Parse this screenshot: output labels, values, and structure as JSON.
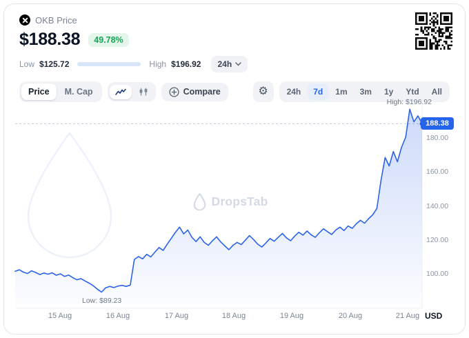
{
  "header": {
    "coin_label": "OKB Price",
    "price": "$188.38",
    "change_pct": "49.78%",
    "low_label": "Low",
    "low_value": "$125.72",
    "high_label": "High",
    "high_value": "$196.92",
    "range_selector": "24h",
    "range_fill_pct": 88
  },
  "toolbar": {
    "metric_tabs": [
      "Price",
      "M. Cap"
    ],
    "selected_metric": "Price",
    "compare_label": "Compare",
    "ranges": [
      "24h",
      "7d",
      "1m",
      "3m",
      "1y",
      "Ytd",
      "All"
    ],
    "selected_range": "7d"
  },
  "chart": {
    "watermark": "DropsTab",
    "high_annotation": "High: $196.92",
    "low_annotation": "Low: $89.23",
    "current_price_label": "188.38"
  },
  "chart_data": {
    "type": "line",
    "title": "OKB Price, 7 days",
    "currency": "USD",
    "x_tick_labels": [
      "15 Aug",
      "16 Aug",
      "17 Aug",
      "18 Aug",
      "19 Aug",
      "20 Aug",
      "21 Aug"
    ],
    "y_ticks": [
      180,
      160,
      140,
      120,
      100
    ],
    "y_tick_labels": [
      "180.00",
      "160.00",
      "140.00",
      "120.00",
      "100.00"
    ],
    "ylim": [
      80,
      202
    ],
    "current_value": 188.38,
    "high": 196.92,
    "low": 89.23,
    "line_color": "#2a62e8",
    "series": [
      {
        "name": "OKB",
        "values": [
          101.5,
          102.4,
          101.0,
          100.2,
          101.8,
          100.8,
          99.6,
          100.5,
          99.8,
          100.6,
          99.2,
          100.0,
          98.5,
          99.3,
          97.8,
          96.5,
          97.2,
          95.8,
          94.5,
          93.0,
          91.0,
          89.23,
          91.8,
          92.6,
          91.9,
          92.8,
          93.2,
          92.6,
          93.4,
          108.5,
          110.2,
          108.8,
          111.5,
          110.0,
          112.8,
          115.5,
          113.8,
          117.5,
          121.0,
          124.5,
          127.5,
          123.5,
          125.8,
          121.5,
          119.0,
          121.8,
          118.5,
          116.8,
          119.5,
          121.8,
          118.8,
          116.5,
          114.2,
          116.8,
          118.5,
          117.2,
          119.8,
          122.5,
          120.2,
          117.5,
          115.8,
          118.2,
          120.8,
          119.2,
          121.5,
          123.8,
          121.2,
          119.5,
          122.2,
          124.5,
          122.8,
          125.2,
          123.0,
          121.5,
          124.2,
          126.5,
          124.8,
          123.2,
          125.8,
          127.5,
          125.5,
          128.2,
          126.8,
          129.5,
          131.5,
          129.8,
          132.5,
          134.8,
          138.5,
          155.0,
          168.5,
          163.5,
          172.0,
          166.0,
          174.5,
          180.5,
          196.92,
          189.5,
          193.0,
          188.38
        ]
      }
    ]
  },
  "colors": {
    "accent_blue": "#2563eb",
    "positive_green": "#18a657",
    "badge_bg": "#e4f6ec",
    "muted_text": "#8a93a3",
    "dark_text": "#0b1425"
  }
}
